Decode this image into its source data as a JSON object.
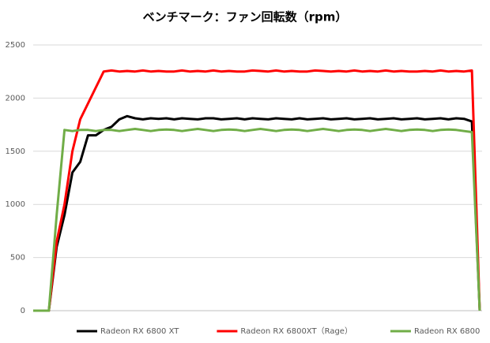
{
  "chart_data": {
    "type": "line",
    "title": "ベンチマーク：ファン回転数（rpm）",
    "categories": [
      null,
      null,
      null,
      null,
      null,
      null,
      null,
      null,
      null,
      null,
      null,
      null,
      null,
      null,
      null,
      null,
      null,
      null,
      null,
      null,
      null,
      null,
      null,
      null,
      null,
      null,
      null,
      null,
      null,
      null,
      null,
      null,
      null,
      null,
      null,
      null,
      null,
      null,
      null,
      null,
      null,
      null,
      null,
      null,
      null,
      null,
      null,
      null,
      null,
      null,
      null,
      null,
      null,
      null,
      null,
      null,
      null,
      null
    ],
    "series": [
      {
        "name": "Radeon RX 6800 XT",
        "color": "#000000",
        "values": [
          0,
          0,
          0,
          600,
          900,
          1300,
          1400,
          1650,
          1650,
          1700,
          1730,
          1800,
          1830,
          1810,
          1800,
          1810,
          1805,
          1810,
          1800,
          1810,
          1805,
          1800,
          1810,
          1810,
          1800,
          1805,
          1810,
          1800,
          1810,
          1805,
          1800,
          1810,
          1805,
          1800,
          1810,
          1800,
          1805,
          1810,
          1800,
          1805,
          1810,
          1800,
          1805,
          1810,
          1800,
          1805,
          1810,
          1800,
          1805,
          1810,
          1800,
          1805,
          1810,
          1800,
          1810,
          1805,
          1780,
          0
        ]
      },
      {
        "name": "Radeon RX 6800XT（Rage）",
        "color": "#ff0000",
        "values": [
          0,
          0,
          0,
          650,
          1000,
          1500,
          1800,
          1950,
          2100,
          2250,
          2260,
          2250,
          2255,
          2250,
          2260,
          2250,
          2255,
          2250,
          2250,
          2260,
          2250,
          2255,
          2250,
          2260,
          2250,
          2255,
          2250,
          2250,
          2260,
          2255,
          2250,
          2260,
          2250,
          2255,
          2250,
          2250,
          2260,
          2255,
          2250,
          2255,
          2250,
          2260,
          2250,
          2255,
          2250,
          2260,
          2250,
          2255,
          2250,
          2250,
          2255,
          2250,
          2260,
          2250,
          2255,
          2250,
          2260,
          0
        ]
      },
      {
        "name": "Radeon RX 6800",
        "color": "#70ad47",
        "values": [
          0,
          0,
          0,
          900,
          1700,
          1690,
          1700,
          1700,
          1690,
          1700,
          1700,
          1690,
          1700,
          1710,
          1700,
          1690,
          1700,
          1705,
          1700,
          1690,
          1700,
          1710,
          1700,
          1690,
          1700,
          1705,
          1700,
          1690,
          1700,
          1710,
          1700,
          1690,
          1700,
          1705,
          1700,
          1690,
          1700,
          1710,
          1700,
          1690,
          1700,
          1705,
          1700,
          1690,
          1700,
          1710,
          1700,
          1690,
          1700,
          1705,
          1700,
          1690,
          1700,
          1705,
          1700,
          1690,
          1680,
          0
        ]
      }
    ],
    "ylim": [
      0,
      2500
    ],
    "yticks": [
      0,
      500,
      1000,
      1500,
      2000,
      2500
    ],
    "grid": true,
    "legend": "bottom"
  }
}
